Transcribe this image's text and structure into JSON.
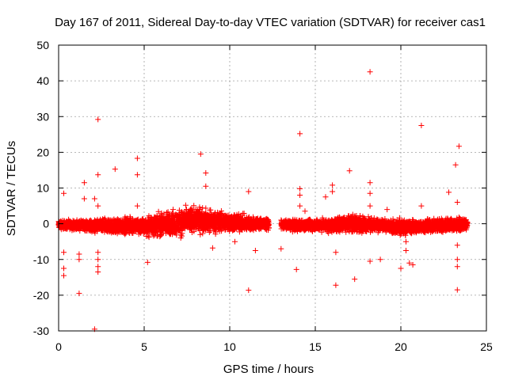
{
  "chart_data": {
    "type": "scatter",
    "title": "Day 167 of 2011, Sidereal Day-to-day VTEC variation (SDTVAR) for receiver cas1",
    "xlabel": "GPS time / hours",
    "ylabel": "SDTVAR / TECUs",
    "xlim": [
      0,
      25
    ],
    "ylim": [
      -30,
      50
    ],
    "x_ticks": [
      0,
      5,
      10,
      15,
      20,
      25
    ],
    "y_ticks": [
      -30,
      -20,
      -10,
      0,
      10,
      20,
      30,
      40,
      50
    ],
    "x_tick_labels": [
      "0",
      "5",
      "10",
      "15",
      "20",
      "25"
    ],
    "y_tick_labels": [
      "-30",
      "-20",
      "-10",
      "0",
      "10",
      "20",
      "30",
      "40",
      "50"
    ],
    "grid": true,
    "marker": "plus",
    "color": "#ff0000",
    "data_gaps_hours": [
      [
        12.3,
        13.0
      ]
    ],
    "dense_band": {
      "description": "continuous per-epoch samples",
      "x": [
        0.0,
        1.0,
        2.0,
        3.0,
        4.0,
        5.0,
        6.0,
        7.0,
        8.0,
        9.0,
        10.0,
        11.0,
        12.0,
        13.0,
        14.0,
        15.0,
        16.0,
        17.0,
        18.0,
        19.0,
        20.0,
        21.0,
        22.0,
        23.0,
        23.9
      ],
      "y_upper": [
        1.5,
        1.2,
        1.8,
        2.0,
        2.5,
        2.5,
        4.0,
        5.0,
        6.0,
        4.5,
        4.0,
        3.0,
        2.0,
        1.5,
        1.5,
        1.8,
        2.0,
        3.5,
        2.5,
        1.5,
        2.0,
        1.5,
        2.0,
        2.5,
        1.5
      ],
      "y_lower": [
        -2.0,
        -2.0,
        -3.0,
        -3.5,
        -3.5,
        -4.0,
        -4.5,
        -4.5,
        -3.5,
        -3.5,
        -3.0,
        -3.0,
        -2.0,
        -2.0,
        -2.5,
        -2.5,
        -3.0,
        -3.0,
        -3.0,
        -2.5,
        -4.0,
        -3.0,
        -3.0,
        -3.0,
        -2.0
      ]
    },
    "outliers": [
      {
        "x": 0.3,
        "y": 8.5
      },
      {
        "x": 0.3,
        "y": -8.0
      },
      {
        "x": 0.3,
        "y": -12.5
      },
      {
        "x": 0.3,
        "y": -14.5
      },
      {
        "x": 1.2,
        "y": -8.5
      },
      {
        "x": 1.2,
        "y": -10.0
      },
      {
        "x": 1.2,
        "y": -19.5
      },
      {
        "x": 1.5,
        "y": 11.5
      },
      {
        "x": 1.5,
        "y": 7.0
      },
      {
        "x": 2.1,
        "y": 7.0
      },
      {
        "x": 2.1,
        "y": -29.5
      },
      {
        "x": 2.3,
        "y": 29.2
      },
      {
        "x": 2.3,
        "y": 13.7
      },
      {
        "x": 2.3,
        "y": 5.0
      },
      {
        "x": 2.3,
        "y": -8.0
      },
      {
        "x": 2.3,
        "y": -10.0
      },
      {
        "x": 2.3,
        "y": -12.0
      },
      {
        "x": 2.3,
        "y": -13.5
      },
      {
        "x": 3.3,
        "y": 15.3
      },
      {
        "x": 4.6,
        "y": 18.3
      },
      {
        "x": 4.6,
        "y": 13.7
      },
      {
        "x": 4.6,
        "y": 5.0
      },
      {
        "x": 5.2,
        "y": -10.8
      },
      {
        "x": 8.3,
        "y": 19.5
      },
      {
        "x": 8.6,
        "y": 14.2
      },
      {
        "x": 8.6,
        "y": 10.5
      },
      {
        "x": 9.0,
        "y": -6.8
      },
      {
        "x": 10.3,
        "y": -5.0
      },
      {
        "x": 11.1,
        "y": 9.0
      },
      {
        "x": 11.1,
        "y": -18.6
      },
      {
        "x": 11.5,
        "y": -7.5
      },
      {
        "x": 13.0,
        "y": -7.0
      },
      {
        "x": 13.9,
        "y": -12.8
      },
      {
        "x": 14.1,
        "y": 25.2
      },
      {
        "x": 14.1,
        "y": 9.8
      },
      {
        "x": 14.1,
        "y": 8.0
      },
      {
        "x": 14.1,
        "y": 5.0
      },
      {
        "x": 14.4,
        "y": 3.5
      },
      {
        "x": 15.6,
        "y": 7.5
      },
      {
        "x": 16.0,
        "y": 10.8
      },
      {
        "x": 16.0,
        "y": 9.0
      },
      {
        "x": 16.2,
        "y": -8.0
      },
      {
        "x": 16.2,
        "y": -17.2
      },
      {
        "x": 17.0,
        "y": 14.8
      },
      {
        "x": 17.3,
        "y": -15.5
      },
      {
        "x": 18.2,
        "y": 42.5
      },
      {
        "x": 18.2,
        "y": 11.5
      },
      {
        "x": 18.2,
        "y": 8.5
      },
      {
        "x": 18.2,
        "y": 5.0
      },
      {
        "x": 18.2,
        "y": -10.5
      },
      {
        "x": 18.8,
        "y": -10.0
      },
      {
        "x": 19.2,
        "y": 4.0
      },
      {
        "x": 20.0,
        "y": -12.5
      },
      {
        "x": 20.3,
        "y": -5.0
      },
      {
        "x": 20.3,
        "y": -7.5
      },
      {
        "x": 20.5,
        "y": -11.0
      },
      {
        "x": 20.7,
        "y": -11.5
      },
      {
        "x": 21.2,
        "y": 27.5
      },
      {
        "x": 21.2,
        "y": 5.0
      },
      {
        "x": 22.8,
        "y": 8.8
      },
      {
        "x": 23.2,
        "y": 16.5
      },
      {
        "x": 23.3,
        "y": 6.0
      },
      {
        "x": 23.4,
        "y": 21.7
      },
      {
        "x": 23.3,
        "y": -6.0
      },
      {
        "x": 23.3,
        "y": -10.0
      },
      {
        "x": 23.3,
        "y": -12.0
      },
      {
        "x": 23.3,
        "y": -18.5
      }
    ]
  }
}
